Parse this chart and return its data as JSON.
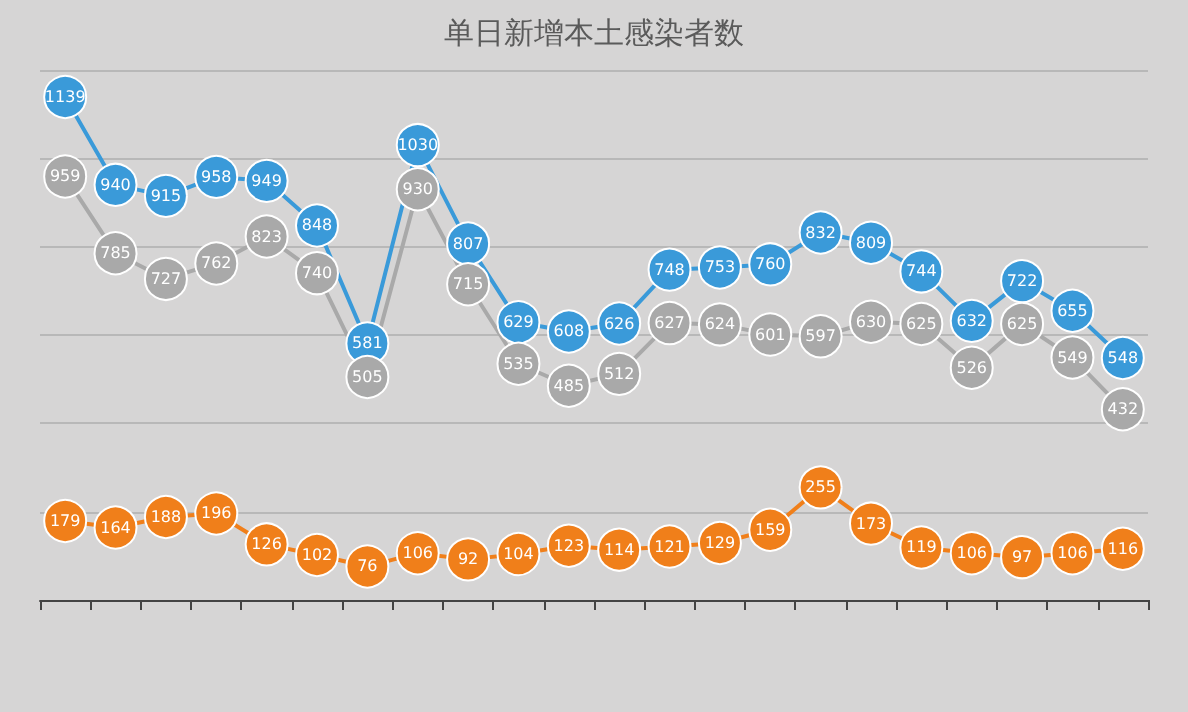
{
  "chart_data": {
    "type": "line",
    "title": "单日新增本土感染者数",
    "categories": [
      null,
      null,
      null,
      null,
      null,
      null,
      null,
      null,
      null,
      null,
      null,
      null,
      null,
      null,
      null,
      null,
      null,
      null,
      null,
      null,
      null,
      null
    ],
    "series": [
      {
        "color": "#3a9ad9",
        "values": [
          1139,
          940,
          915,
          958,
          949,
          848,
          581,
          1030,
          807,
          629,
          608,
          626,
          748,
          753,
          760,
          832,
          809,
          744,
          632,
          722,
          655,
          548
        ]
      },
      {
        "color": "#a9a9a9",
        "values": [
          959,
          785,
          727,
          762,
          823,
          740,
          505,
          930,
          715,
          535,
          485,
          512,
          627,
          624,
          601,
          597,
          630,
          625,
          526,
          625,
          549,
          432
        ]
      },
      {
        "color": "#f07f1a",
        "values": [
          179,
          164,
          188,
          196,
          126,
          102,
          76,
          106,
          92,
          104,
          123,
          114,
          121,
          129,
          159,
          255,
          173,
          119,
          106,
          97,
          106,
          116
        ]
      }
    ],
    "grid": "y",
    "data_labels": true,
    "marker": "circle",
    "line_style": "solid"
  }
}
